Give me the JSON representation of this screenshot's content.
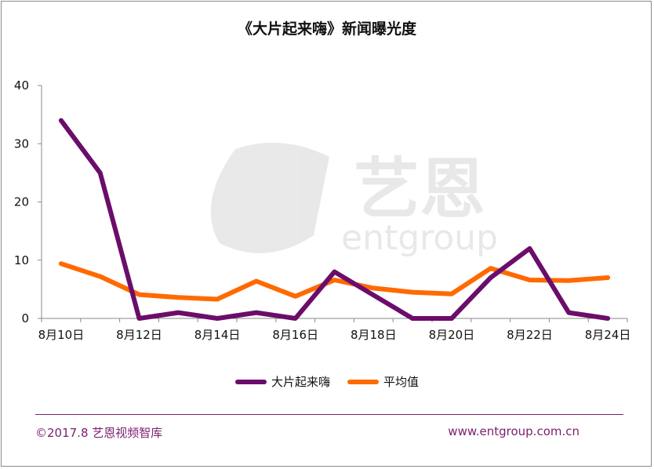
{
  "title": "《大片起来嗨》新闻曝光度",
  "colors": {
    "series1": "#6b0d6b",
    "series2": "#ff6a00",
    "axis": "#8a8a8a",
    "accent": "#7a1f6e"
  },
  "watermark": {
    "brand_cn": "艺恩",
    "brand_en": "entgroup"
  },
  "legend": {
    "items": [
      "大片起来嗨",
      "平均值"
    ],
    "placement": "bottom"
  },
  "footer": {
    "left": "©2017.8 艺恩视频智库",
    "right": "www.entgroup.com.cn"
  },
  "chart_data": {
    "type": "line",
    "title": "《大片起来嗨》新闻曝光度",
    "xlabel": "",
    "ylabel": "",
    "x": [
      "8月10日",
      "8月11日",
      "8月12日",
      "8月13日",
      "8月14日",
      "8月15日",
      "8月16日",
      "8月17日",
      "8月18日",
      "8月19日",
      "8月20日",
      "8月21日",
      "8月22日",
      "8月23日",
      "8月24日"
    ],
    "x_tick_labels": [
      "8月10日",
      "8月12日",
      "8月14日",
      "8月16日",
      "8月18日",
      "8月20日",
      "8月22日",
      "8月24日"
    ],
    "ylim": [
      0,
      40
    ],
    "y_ticks": [
      "0",
      "10",
      "20",
      "30",
      "40"
    ],
    "grid": false,
    "series": [
      {
        "name": "大片起来嗨",
        "values": [
          34,
          25,
          0,
          1,
          0,
          1,
          0,
          8,
          4,
          0,
          0,
          7,
          12,
          1,
          0
        ]
      },
      {
        "name": "平均值",
        "values": [
          9.4,
          7.2,
          4.1,
          3.6,
          3.3,
          6.4,
          3.8,
          6.6,
          5.2,
          4.5,
          4.2,
          8.6,
          6.6,
          6.5,
          7.0
        ]
      }
    ]
  }
}
